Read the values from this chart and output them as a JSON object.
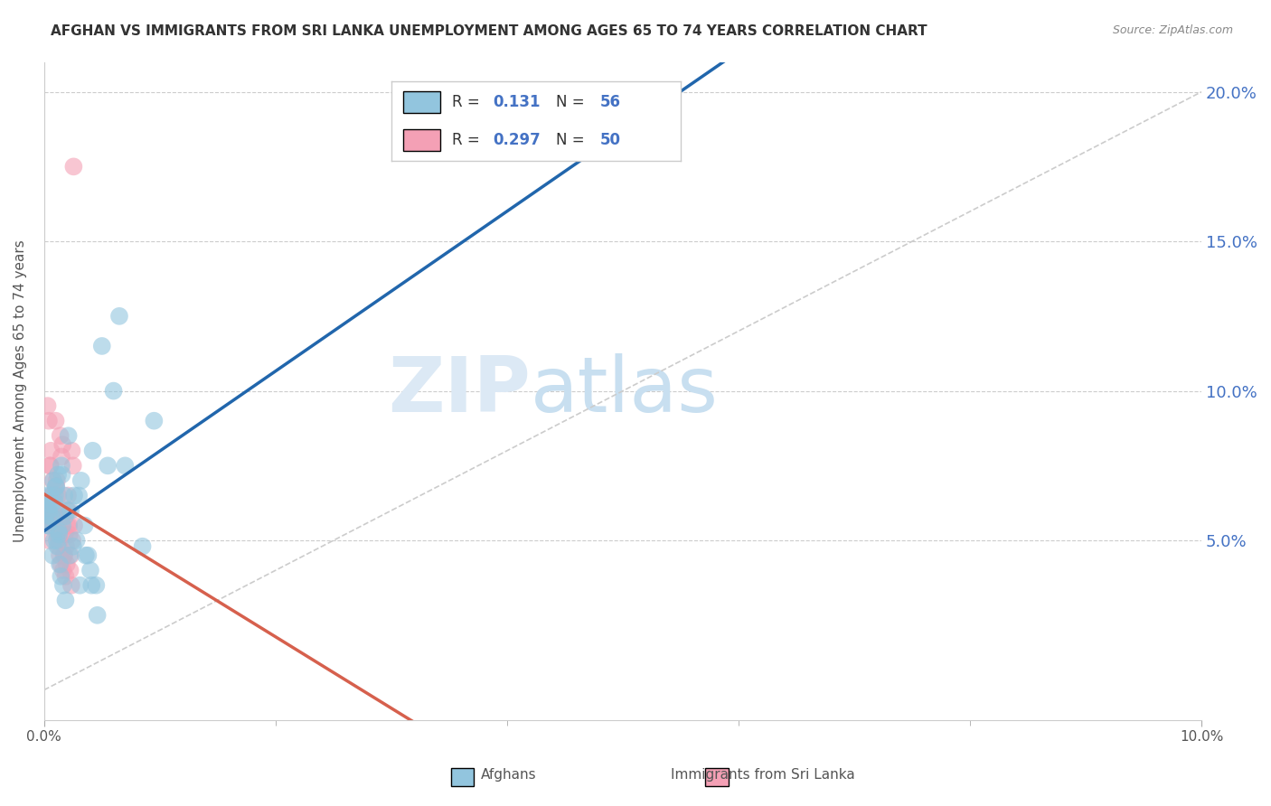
{
  "title": "AFGHAN VS IMMIGRANTS FROM SRI LANKA UNEMPLOYMENT AMONG AGES 65 TO 74 YEARS CORRELATION CHART",
  "source": "Source: ZipAtlas.com",
  "ylabel": "Unemployment Among Ages 65 to 74 years",
  "xlim": [
    0.0,
    10.0
  ],
  "ylim": [
    -1.0,
    21.0
  ],
  "yaxis_ticks": [
    5.0,
    10.0,
    15.0,
    20.0
  ],
  "yaxis_labels": [
    "5.0%",
    "10.0%",
    "15.0%",
    "20.0%"
  ],
  "xaxis_left_label": "0.0%",
  "xaxis_right_label": "10.0%",
  "legend_afghans_R": "0.131",
  "legend_afghans_N": "56",
  "legend_srilanka_R": "0.297",
  "legend_srilanka_N": "50",
  "color_afghans": "#92c5de",
  "color_srilanka": "#f4a0b5",
  "color_line_afghans": "#2166ac",
  "color_line_srilanka": "#d6604d",
  "color_line_diag": "#cccccc",
  "color_axis_labels": "#4472c4",
  "watermark_zip": "ZIP",
  "watermark_atlas": "atlas",
  "afghans_x": [
    0.05,
    0.08,
    0.1,
    0.12,
    0.15,
    0.03,
    0.04,
    0.06,
    0.07,
    0.09,
    0.11,
    0.13,
    0.16,
    0.18,
    0.2,
    0.22,
    0.25,
    0.28,
    0.3,
    0.32,
    0.35,
    0.38,
    0.4,
    0.42,
    0.45,
    0.5,
    0.55,
    0.6,
    0.65,
    0.7,
    0.02,
    0.035,
    0.045,
    0.055,
    0.065,
    0.075,
    0.085,
    0.095,
    0.105,
    0.115,
    0.125,
    0.135,
    0.145,
    0.155,
    0.165,
    0.175,
    0.185,
    0.21,
    0.23,
    0.26,
    0.31,
    0.36,
    0.41,
    0.46,
    0.85,
    0.95
  ],
  "afghans_y": [
    6.5,
    7.0,
    6.8,
    7.2,
    7.5,
    5.5,
    6.0,
    6.2,
    5.8,
    6.3,
    5.0,
    5.2,
    5.5,
    5.8,
    6.0,
    4.5,
    4.8,
    5.0,
    6.5,
    7.0,
    5.5,
    4.5,
    4.0,
    8.0,
    3.5,
    11.5,
    7.5,
    10.0,
    12.5,
    7.5,
    6.5,
    5.5,
    6.0,
    5.8,
    6.2,
    4.5,
    5.0,
    6.5,
    6.8,
    4.8,
    5.3,
    4.2,
    3.8,
    7.2,
    3.5,
    6.5,
    3.0,
    8.5,
    6.0,
    6.5,
    3.5,
    4.5,
    3.5,
    2.5,
    4.8,
    9.0
  ],
  "srilanka_x": [
    0.02,
    0.03,
    0.04,
    0.05,
    0.06,
    0.07,
    0.08,
    0.09,
    0.1,
    0.11,
    0.12,
    0.13,
    0.14,
    0.15,
    0.16,
    0.17,
    0.18,
    0.19,
    0.2,
    0.21,
    0.22,
    0.23,
    0.24,
    0.25,
    0.26,
    0.015,
    0.025,
    0.035,
    0.045,
    0.055,
    0.065,
    0.075,
    0.085,
    0.095,
    0.105,
    0.115,
    0.125,
    0.135,
    0.145,
    0.155,
    0.165,
    0.175,
    0.185,
    0.195,
    0.205,
    0.215,
    0.225,
    0.235,
    0.245,
    0.255
  ],
  "srilanka_y": [
    6.0,
    9.5,
    9.0,
    7.5,
    8.0,
    6.5,
    5.5,
    5.8,
    9.0,
    7.0,
    6.5,
    5.0,
    8.5,
    7.8,
    8.2,
    4.5,
    5.2,
    4.8,
    5.5,
    6.0,
    5.2,
    4.5,
    8.0,
    7.5,
    5.5,
    5.8,
    6.0,
    5.5,
    5.0,
    7.5,
    6.5,
    7.0,
    6.0,
    5.5,
    6.8,
    5.2,
    4.8,
    4.5,
    4.2,
    5.8,
    4.0,
    4.5,
    3.8,
    4.2,
    6.5,
    5.5,
    4.0,
    3.5,
    5.0,
    17.5
  ]
}
